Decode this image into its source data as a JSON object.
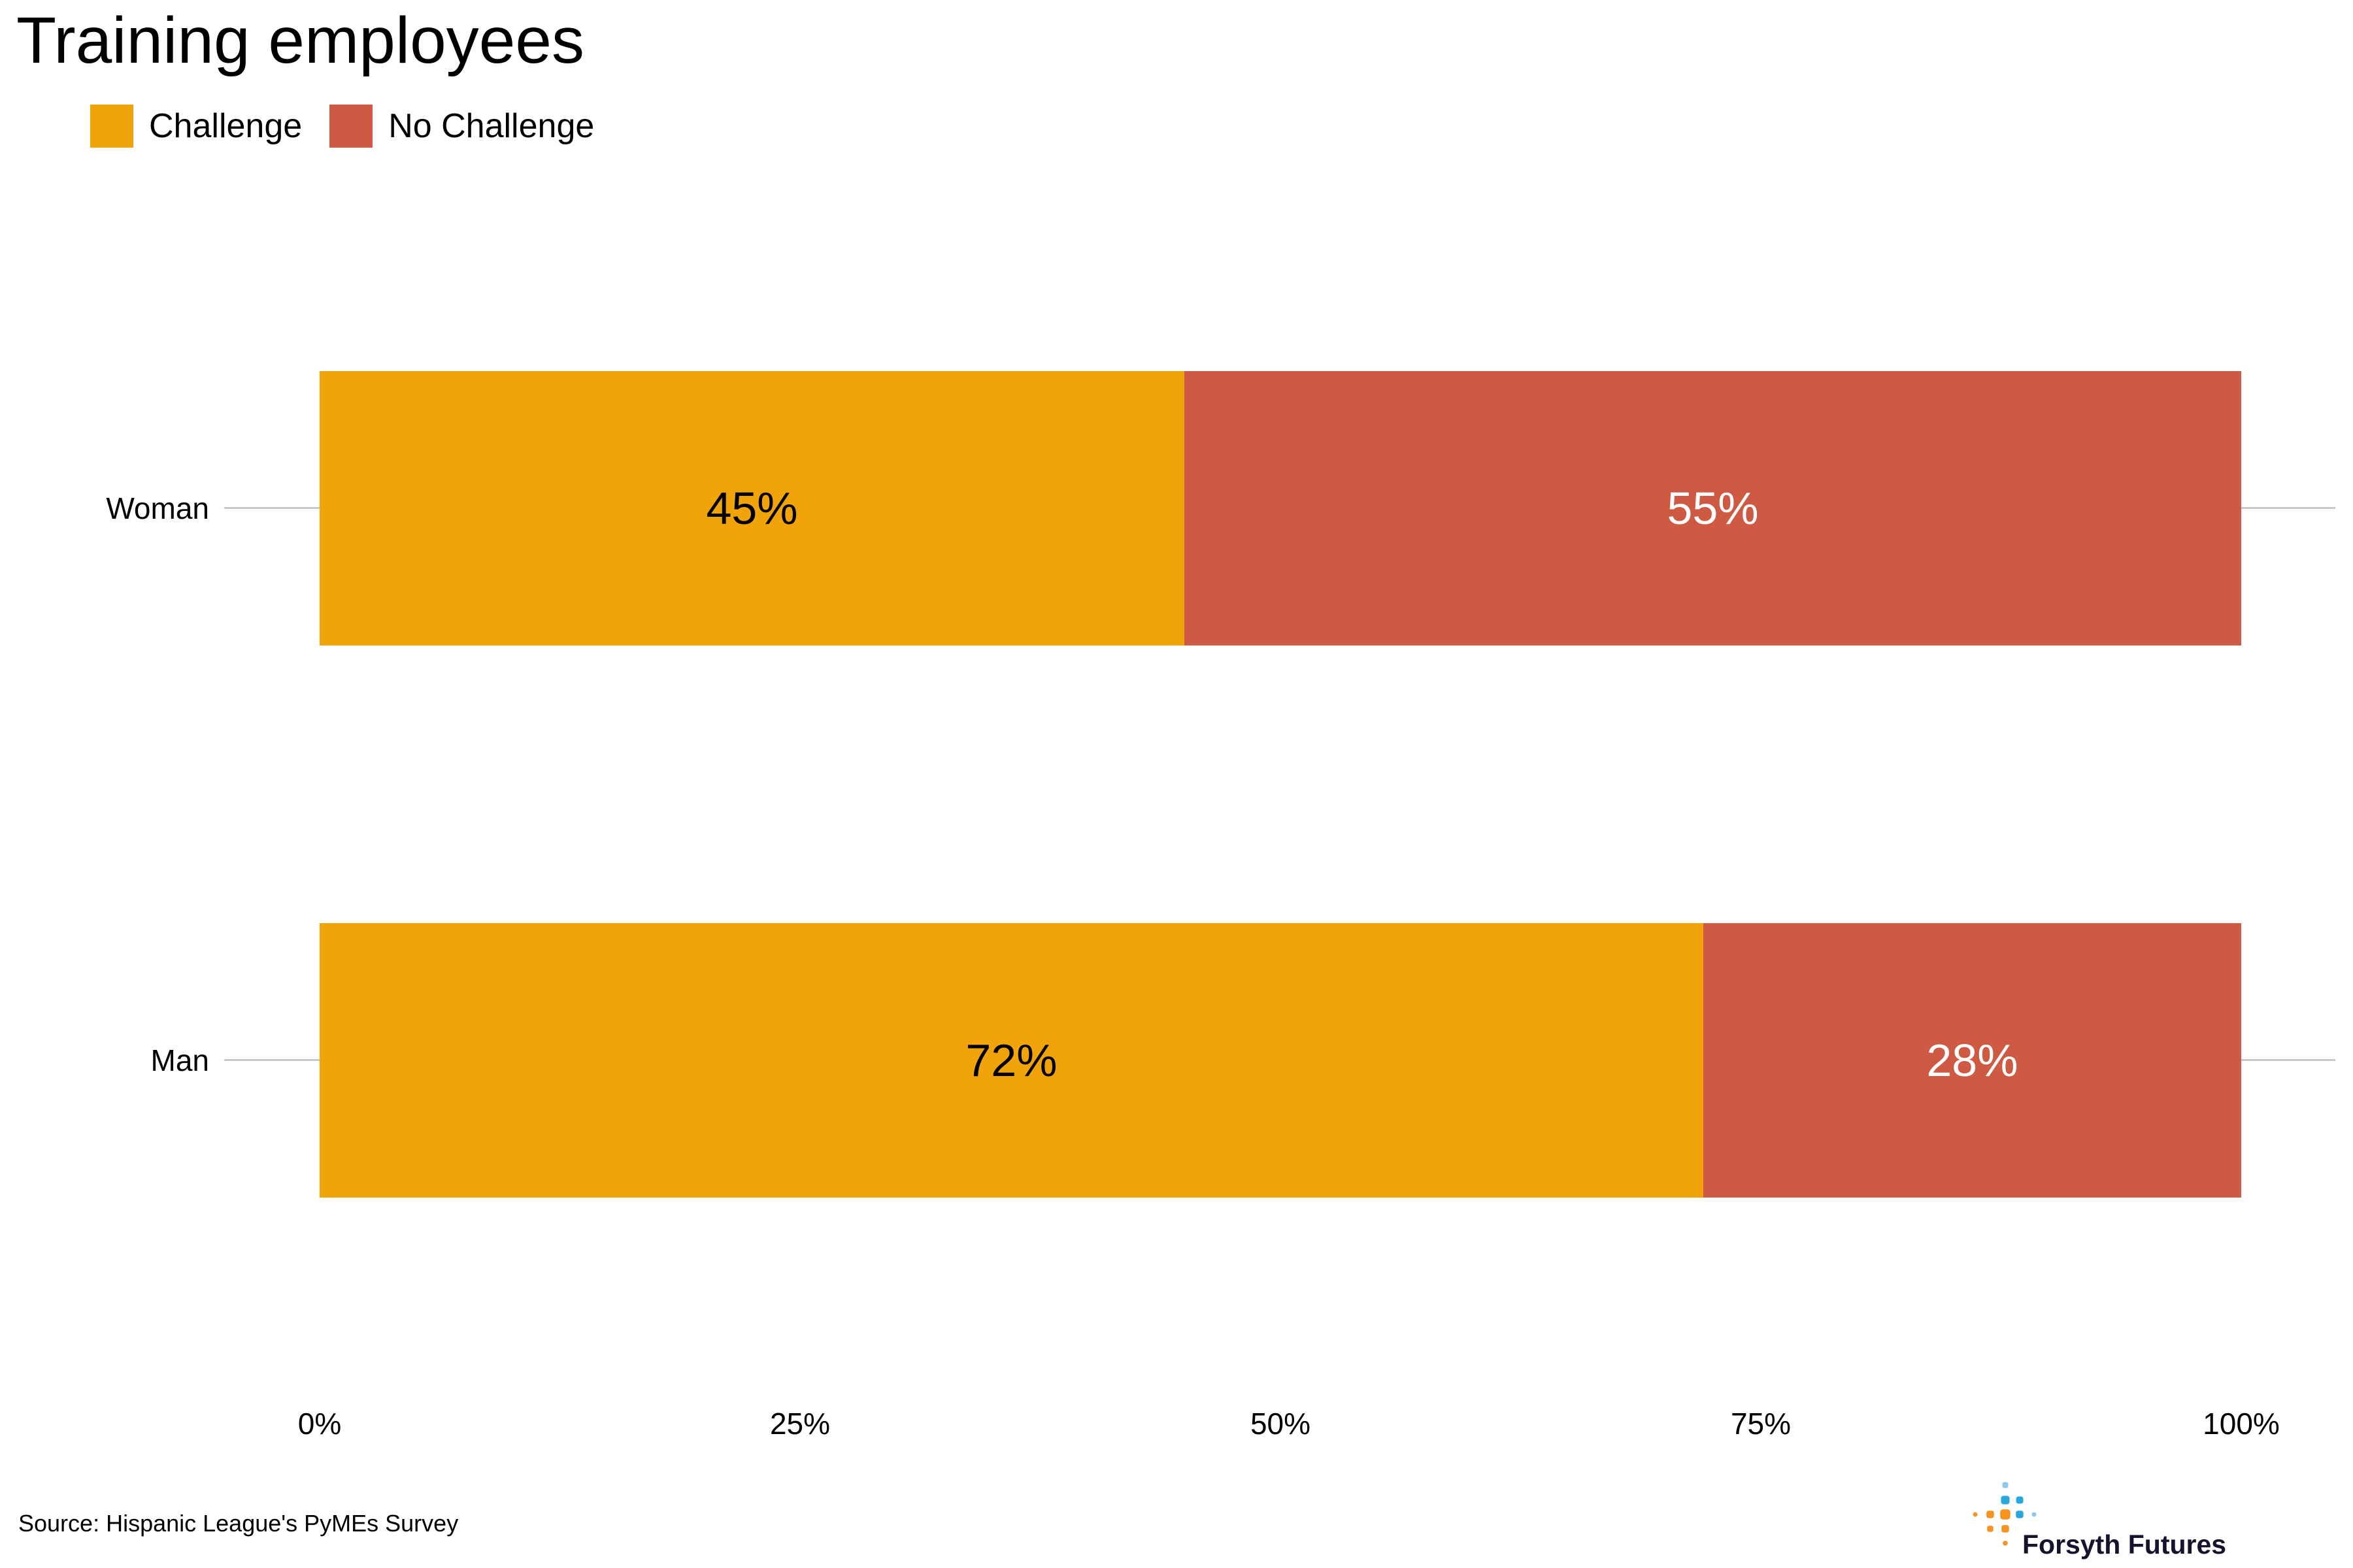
{
  "title": "Training employees",
  "chart_data": {
    "type": "bar",
    "orientation": "horizontal",
    "stacked": true,
    "title": "Training employees",
    "categories": [
      "Woman",
      "Man"
    ],
    "series": [
      {
        "name": "Challenge",
        "color": "#F0A40A",
        "label_color": "#000000",
        "values": [
          45,
          72
        ]
      },
      {
        "name": "No Challenge",
        "color": "#CF5A43",
        "label_color": "#FFFFFF",
        "values": [
          55,
          28
        ]
      }
    ],
    "value_label_format": "percent",
    "xlabel": "",
    "ylabel": "",
    "xlim": [
      0,
      100
    ],
    "x_tick_values": [
      0,
      25,
      50,
      75,
      100
    ],
    "x_tick_labels": [
      "0%",
      "25%",
      "50%",
      "75%",
      "100%"
    ],
    "grid": "horizontal-category-lines",
    "gridline_color": "#C9C9C9",
    "legend_position": "top-left"
  },
  "footer": {
    "source": "Source: Hispanic League's PyMEs Survey",
    "logo_text": "Forsyth Futures"
  },
  "colors": {
    "challenge": "#F0A40A",
    "no_challenge": "#CF5A43",
    "gridline": "#C9C9C9",
    "logo_orange": "#F6921E",
    "logo_blue": "#29A7DB",
    "logo_light_blue": "#8EC8E9",
    "logo_text": "#14142D"
  }
}
